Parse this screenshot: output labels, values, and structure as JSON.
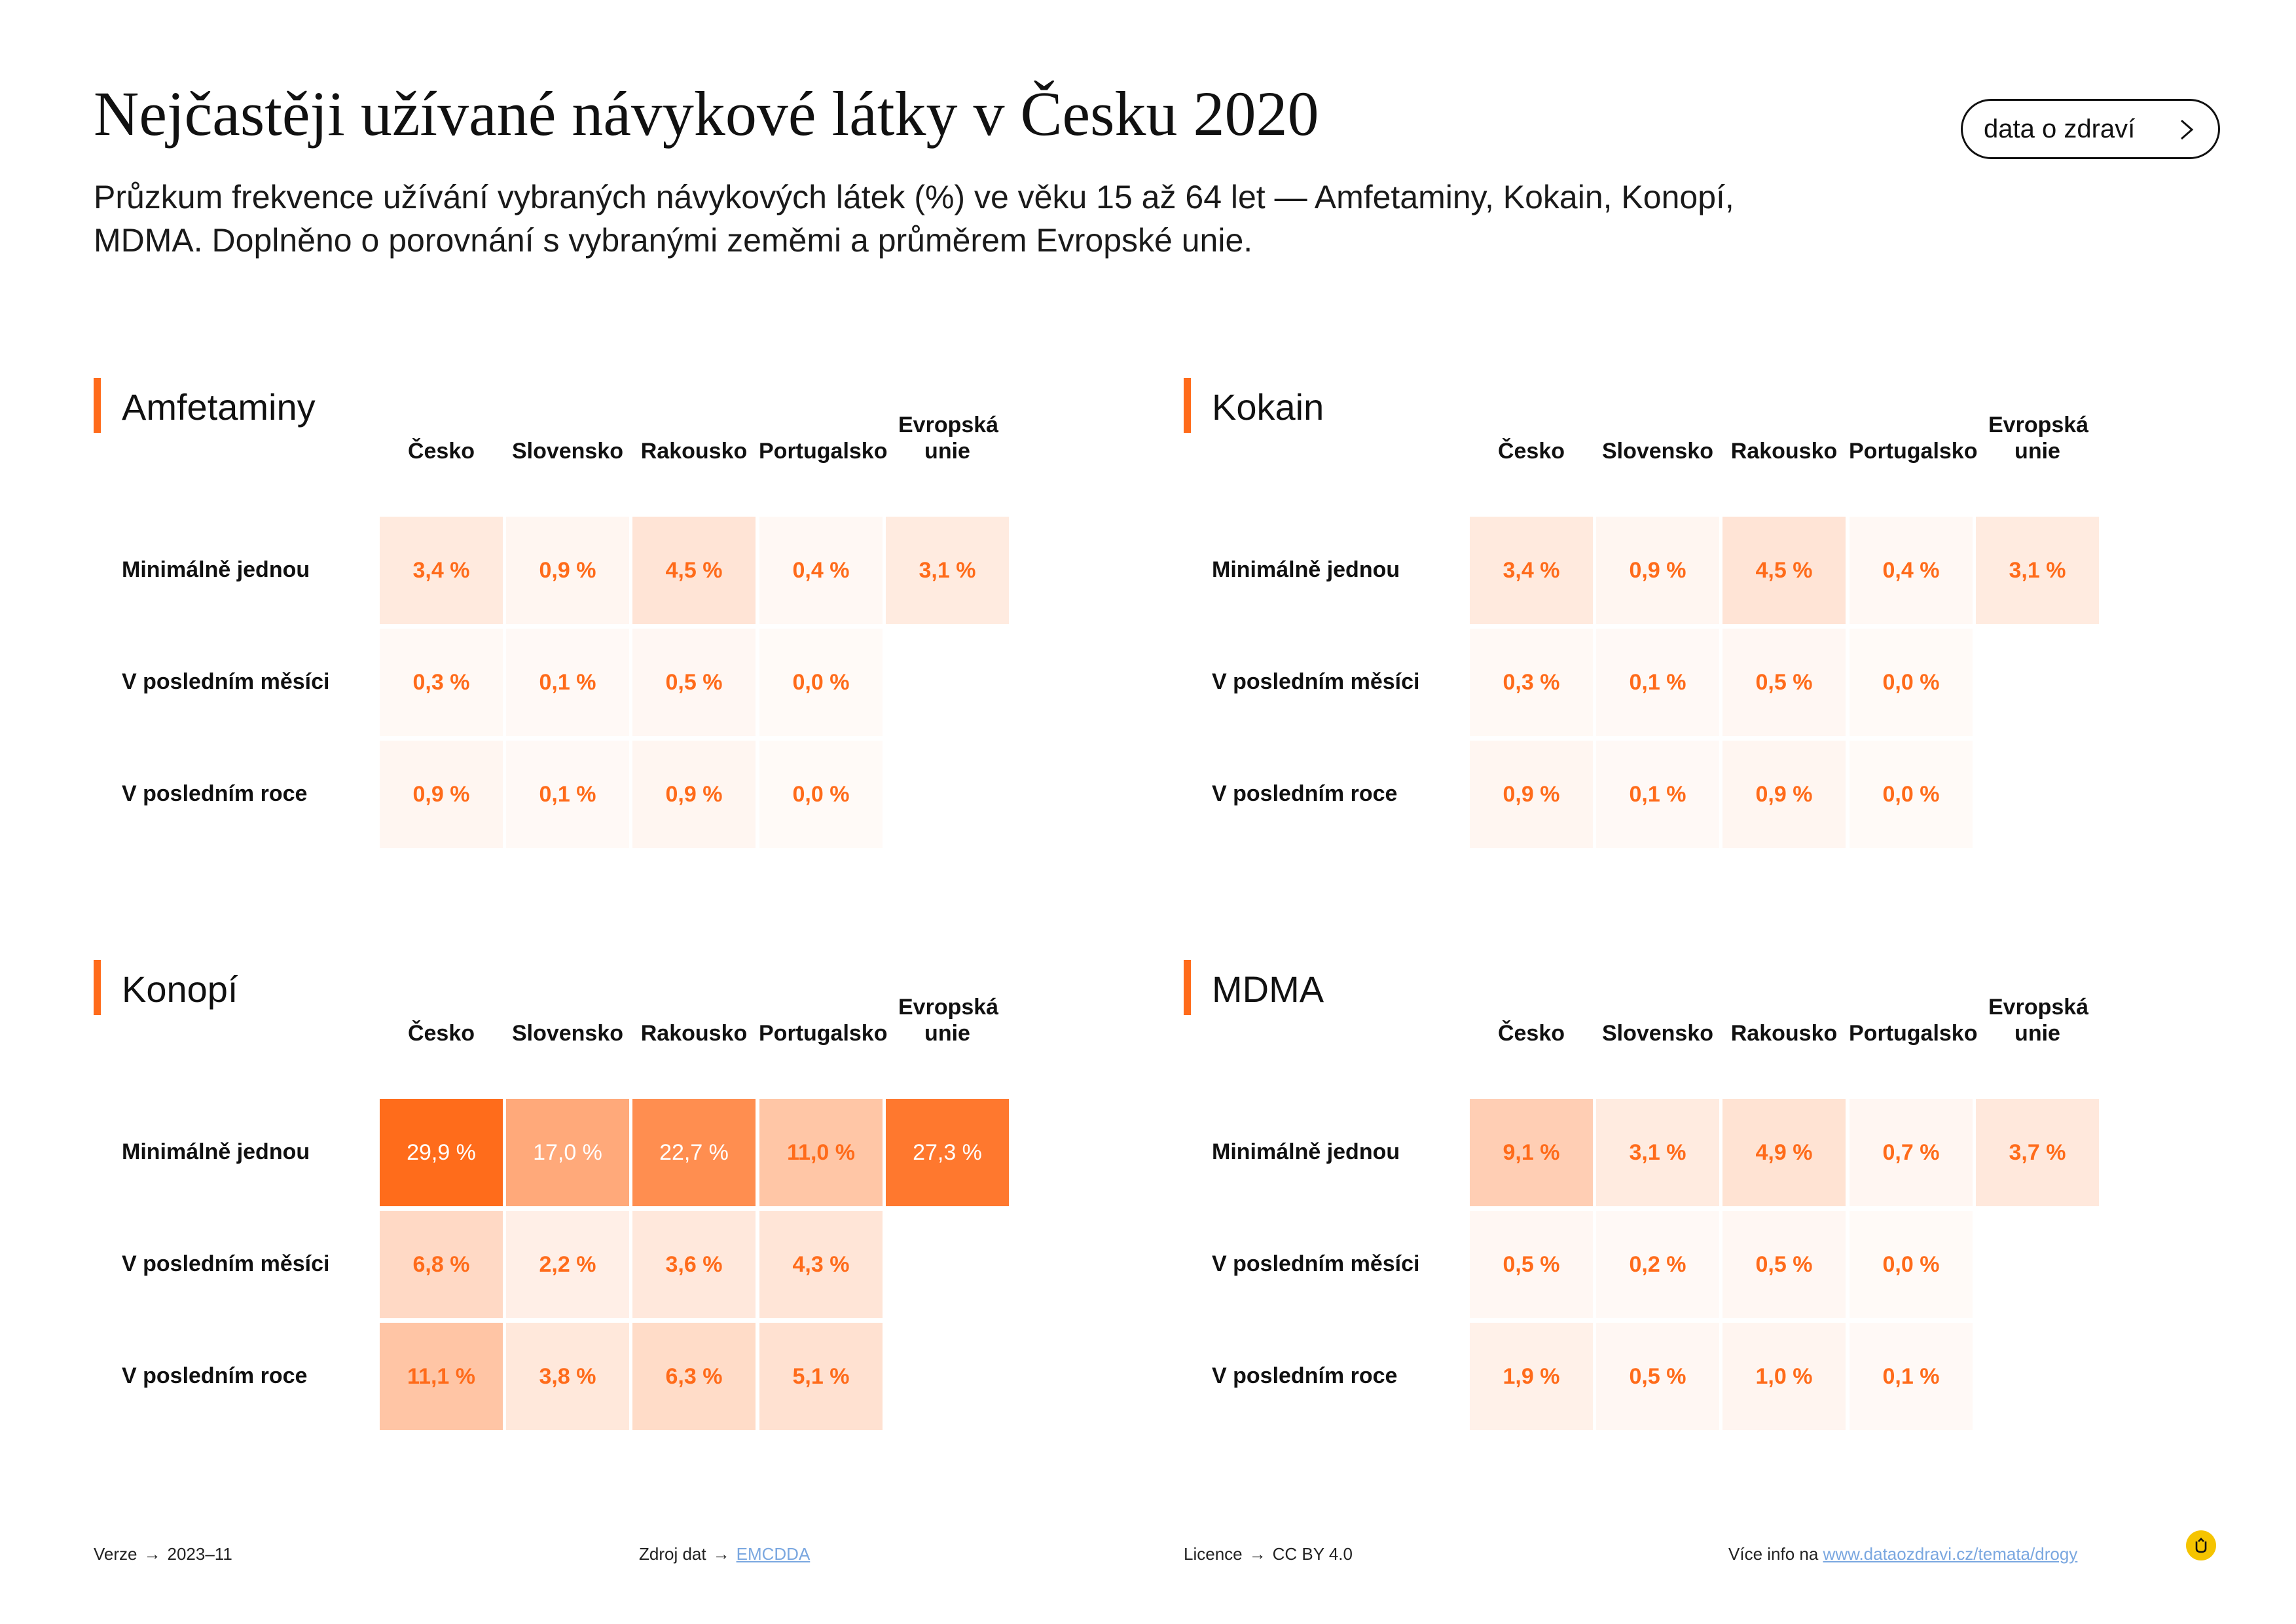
{
  "header": {
    "title": "Nejčastěji užívané návykové látky v Česku 2020",
    "subtitle": "Průzkum frekvence užívání vybraných návykových látek (%) ve věku 15 až 64 let — Amfetaminy, Kokain, Konopí, MDMA. Doplněno o porovnání s vybranými zeměmi a průměrem Evropské unie.",
    "brand_button_label": "data o zdraví"
  },
  "colors": {
    "accent": "#ff6b1a",
    "value_text_light": "#ff6b1a",
    "value_text_dark": "#ffffff"
  },
  "chart_data": [
    {
      "type": "heatmap",
      "title": "Amfetaminy",
      "columns": [
        "Česko",
        "Slovensko",
        "Rakousko",
        "Portugalsko",
        "Evropská unie"
      ],
      "rows": [
        "Minimálně jednou",
        "V posledním měsíci",
        "V posledním roce"
      ],
      "values": [
        [
          3.4,
          0.9,
          4.5,
          0.4,
          3.1
        ],
        [
          0.3,
          0.1,
          0.5,
          0.0,
          null
        ],
        [
          0.9,
          0.1,
          0.9,
          0.0,
          null
        ]
      ],
      "labels": [
        [
          "3,4 %",
          "0,9 %",
          "4,5 %",
          "0,4 %",
          "3,1 %"
        ],
        [
          "0,3 %",
          "0,1 %",
          "0,5 %",
          "0,0 %",
          ""
        ],
        [
          "0,9 %",
          "0,1 %",
          "0,9 %",
          "0,0 %",
          ""
        ]
      ]
    },
    {
      "type": "heatmap",
      "title": "Kokain",
      "columns": [
        "Česko",
        "Slovensko",
        "Rakousko",
        "Portugalsko",
        "Evropská unie"
      ],
      "rows": [
        "Minimálně jednou",
        "V posledním měsíci",
        "V posledním roce"
      ],
      "values": [
        [
          3.4,
          0.9,
          4.5,
          0.4,
          3.1
        ],
        [
          0.3,
          0.1,
          0.5,
          0.0,
          null
        ],
        [
          0.9,
          0.1,
          0.9,
          0.0,
          null
        ]
      ],
      "labels": [
        [
          "3,4 %",
          "0,9 %",
          "4,5 %",
          "0,4 %",
          "3,1 %"
        ],
        [
          "0,3 %",
          "0,1 %",
          "0,5 %",
          "0,0 %",
          ""
        ],
        [
          "0,9 %",
          "0,1 %",
          "0,9 %",
          "0,0 %",
          ""
        ]
      ]
    },
    {
      "type": "heatmap",
      "title": "Konopí",
      "columns": [
        "Česko",
        "Slovensko",
        "Rakousko",
        "Portugalsko",
        "Evropská unie"
      ],
      "rows": [
        "Minimálně jednou",
        "V posledním měsíci",
        "V posledním roce"
      ],
      "values": [
        [
          29.9,
          17.0,
          22.7,
          11.0,
          27.3
        ],
        [
          6.8,
          2.2,
          3.6,
          4.3,
          null
        ],
        [
          11.1,
          3.8,
          6.3,
          5.1,
          null
        ]
      ],
      "labels": [
        [
          "29,9 %",
          "17,0 %",
          "22,7 %",
          "11,0 %",
          "27,3 %"
        ],
        [
          "6,8 %",
          "2,2 %",
          "3,6 %",
          "4,3 %",
          ""
        ],
        [
          "11,1 %",
          "3,8 %",
          "6,3 %",
          "5,1 %",
          ""
        ]
      ]
    },
    {
      "type": "heatmap",
      "title": "MDMA",
      "columns": [
        "Česko",
        "Slovensko",
        "Rakousko",
        "Portugalsko",
        "Evropská unie"
      ],
      "rows": [
        "Minimálně jednou",
        "V posledním měsíci",
        "V posledním roce"
      ],
      "values": [
        [
          9.1,
          3.1,
          4.9,
          0.7,
          3.7
        ],
        [
          0.5,
          0.2,
          0.5,
          0.0,
          null
        ],
        [
          1.9,
          0.5,
          1.0,
          0.1,
          null
        ]
      ],
      "labels": [
        [
          "9,1 %",
          "3,1 %",
          "4,9 %",
          "0,7 %",
          "3,7 %"
        ],
        [
          "0,5 %",
          "0,2 %",
          "0,5 %",
          "0,0 %",
          ""
        ],
        [
          "1,9 %",
          "0,5 %",
          "1,0 %",
          "0,1 %",
          ""
        ]
      ]
    }
  ],
  "footer": {
    "version_label": "Verze",
    "version_value": "2023–11",
    "source_label": "Zdroj dat",
    "source_link": "EMCDDA",
    "license_label": "Licence",
    "license_value": "CC BY 4.0",
    "more_info_label": "Více info na",
    "more_info_link": "www.dataozdravi.cz/temata/drogy",
    "arrow": "→"
  }
}
